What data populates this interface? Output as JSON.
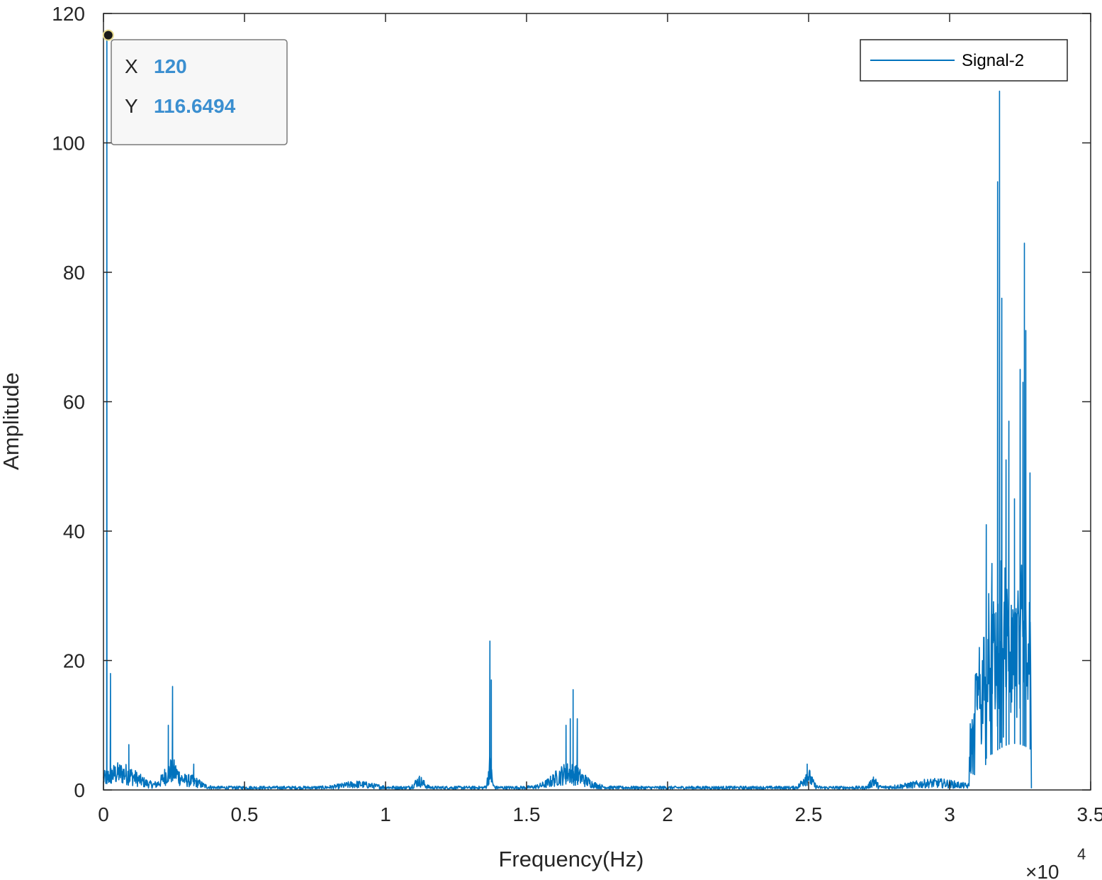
{
  "chart_data": {
    "type": "line",
    "xlabel": "Frequency(Hz)",
    "ylabel": "Amplitude",
    "xlim": [
      0,
      35000
    ],
    "ylim": [
      0,
      120
    ],
    "x_ticks": [
      0,
      5000,
      10000,
      15000,
      20000,
      25000,
      30000,
      35000
    ],
    "x_tick_labels": [
      "0",
      "0.5",
      "1",
      "1.5",
      "2",
      "2.5",
      "3",
      "3.5"
    ],
    "y_ticks": [
      0,
      20,
      40,
      60,
      80,
      100,
      120
    ],
    "y_tick_labels": [
      "0",
      "20",
      "40",
      "60",
      "80",
      "100",
      "120"
    ],
    "x_exponent_base": "×10",
    "x_exponent_power": "4",
    "grid": false,
    "legend_position": "top-right",
    "series": [
      {
        "name": "Signal-2",
        "color": "#0072bd",
        "peaks": [
          {
            "x": 120,
            "y": 116.6
          },
          {
            "x": 250,
            "y": 18
          },
          {
            "x": 900,
            "y": 7
          },
          {
            "x": 2450,
            "y": 16
          },
          {
            "x": 2300,
            "y": 10
          },
          {
            "x": 3200,
            "y": 4
          },
          {
            "x": 11200,
            "y": 2
          },
          {
            "x": 13700,
            "y": 23
          },
          {
            "x": 13750,
            "y": 17
          },
          {
            "x": 16400,
            "y": 10
          },
          {
            "x": 16550,
            "y": 11
          },
          {
            "x": 16650,
            "y": 15.5
          },
          {
            "x": 16800,
            "y": 11
          },
          {
            "x": 24950,
            "y": 4
          },
          {
            "x": 27300,
            "y": 2
          },
          {
            "x": 31300,
            "y": 41
          },
          {
            "x": 31500,
            "y": 35
          },
          {
            "x": 31700,
            "y": 94
          },
          {
            "x": 31770,
            "y": 108
          },
          {
            "x": 31850,
            "y": 76
          },
          {
            "x": 32000,
            "y": 51
          },
          {
            "x": 32100,
            "y": 57
          },
          {
            "x": 32300,
            "y": 45
          },
          {
            "x": 32500,
            "y": 65
          },
          {
            "x": 32600,
            "y": 63
          },
          {
            "x": 32650,
            "y": 84.5
          },
          {
            "x": 32700,
            "y": 71
          },
          {
            "x": 32850,
            "y": 49
          }
        ]
      }
    ]
  },
  "data_tip": {
    "x_key": "X",
    "x_value": "120",
    "y_key": "Y",
    "y_value": "116.6494",
    "point_x": 120,
    "point_y": 116.6494
  }
}
